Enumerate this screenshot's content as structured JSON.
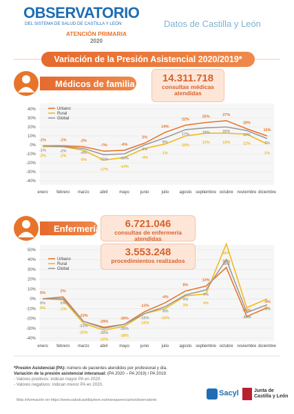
{
  "header": {
    "logo": "OBSERVATORIO",
    "logo_sub": "DEL SISTEMA DE SALUD DE CASTILLA Y LEÓN",
    "section": "ATENCIÓN PRIMARIA",
    "year": "2020",
    "region": "Datos de Castilla y León"
  },
  "banner": "Variación de la Presión Asistencial 2020/2019*",
  "chart_data": [
    {
      "type": "line",
      "title": "Médicos de familia",
      "annotations": [
        "14.311.718",
        "consultas médicas atendidas"
      ],
      "categories": [
        "enero",
        "febrero",
        "marzo",
        "abril",
        "mayo",
        "junio",
        "julio",
        "agosto",
        "septiembre",
        "octubre",
        "noviembre",
        "diciembre"
      ],
      "series": [
        {
          "name": "Urbano",
          "color": "#e8742a",
          "values": [
            -1,
            -1,
            -2,
            -7,
            -6,
            2,
            14,
            22,
            25,
            27,
            18,
            10
          ],
          "value_labels": [
            "-1%",
            "-1%",
            "-2%",
            "-7%",
            "-6%",
            "2%",
            "14%",
            "22%",
            "25%",
            "27%",
            "18%",
            "10%"
          ]
        },
        {
          "name": "Rural",
          "color": "#f2b81c",
          "values": [
            -2,
            -2,
            -6,
            -17,
            -14,
            -4,
            1,
            10,
            13,
            13,
            12,
            1
          ],
          "value_labels": [
            "-2%",
            "-2%",
            "-6%",
            "-17%",
            "-14%",
            "-4%",
            "1%",
            "10%",
            "13%",
            "13%",
            "12%",
            "1%"
          ]
        },
        {
          "name": "Global",
          "color": "#9a9a9a",
          "values": [
            -1,
            -2,
            -4,
            -11,
            -10,
            0,
            8,
            17,
            19,
            20,
            16,
            7
          ],
          "value_labels": [
            "-1%",
            "-2%",
            "-4%",
            "-11%",
            "-10%",
            "0%",
            "8%",
            "17%",
            "19%",
            "20%",
            "16%",
            "7%"
          ]
        }
      ],
      "ylim": [
        -40,
        40
      ],
      "yticks": [
        {
          "value": 40,
          "label": "40%"
        },
        {
          "value": 30,
          "label": "30%"
        },
        {
          "value": 20,
          "label": "20%"
        },
        {
          "value": 10,
          "label": "10%"
        },
        {
          "value": 0,
          "label": "0%"
        },
        {
          "value": -10,
          "label": "-10%"
        },
        {
          "value": -20,
          "label": "-20%"
        },
        {
          "value": -30,
          "label": "-30%"
        },
        {
          "value": -40,
          "label": "-40%"
        }
      ],
      "grid": true
    },
    {
      "type": "line",
      "title": "Enfermería",
      "annotations": [
        "6.721.046",
        "consultas de enfermería atendidas",
        "3.553.248",
        "procedimientos realizados"
      ],
      "categories": [
        "enero",
        "febrero",
        "marzo",
        "abril",
        "mayo",
        "junio",
        "julio",
        "agosto",
        "septiembre",
        "octubre",
        "noviembre",
        "diciembre"
      ],
      "series": [
        {
          "name": "Urbano",
          "color": "#e8742a",
          "values": [
            0,
            2,
            -23,
            -29,
            -26,
            -13,
            -4,
            8,
            13,
            32,
            -18,
            -9
          ],
          "value_labels": [
            "0%",
            "2%",
            "-23%",
            "-29%",
            "-26%",
            "-13%",
            "-4%",
            "8%",
            "13%",
            "32%",
            "-18%",
            "-9%"
          ]
        },
        {
          "name": "Rural",
          "color": "#f2b81c",
          "values": [
            0,
            -1,
            -25,
            -32,
            -28,
            -15,
            -10,
            3,
            5,
            56,
            -9,
            0
          ],
          "value_labels": [
            "0%",
            "-1%",
            "-25%",
            "-32%",
            "-28%",
            "-15%",
            "-10%",
            "3%",
            "5%",
            "56%",
            "-9%",
            "0%"
          ]
        },
        {
          "name": "Global",
          "color": "#9a9a9a",
          "values": [
            0,
            0,
            -23,
            -30,
            -26,
            -15,
            -8,
            4,
            9,
            40,
            -14,
            -6
          ],
          "value_labels": [
            "0%",
            "0%",
            "-23%",
            "-30%",
            "-26%",
            "-15%",
            "-8%",
            "4%",
            "9%",
            "40%",
            "-14%",
            "-6%"
          ]
        }
      ],
      "ylim": [
        -40,
        50
      ],
      "yticks": [
        {
          "value": 50,
          "label": "50%"
        },
        {
          "value": 40,
          "label": "40%"
        },
        {
          "value": 30,
          "label": "30%"
        },
        {
          "value": 20,
          "label": "20%"
        },
        {
          "value": 10,
          "label": "10%"
        },
        {
          "value": 0,
          "label": "0%"
        },
        {
          "value": -10,
          "label": "-10%"
        },
        {
          "value": -20,
          "label": "-20%"
        },
        {
          "value": -30,
          "label": "-30%"
        },
        {
          "value": -40,
          "label": "-40%"
        }
      ],
      "grid": true
    }
  ],
  "footer": {
    "definition_term": "*Presión Asistencial (PA):",
    "definition": "número de pacientes atendidos por profesional y día.",
    "variation_term": "Variación de la presión asistencial interanual:",
    "variation": "(PA 2020 – PA 2019) / PA 2019.",
    "notes": [
      "- Valores positivos: indican mayor PA en 2020.",
      "- Valores negativos: indican menor PA en 2020."
    ],
    "more_info": "Más información en https://www.saludcastillayleon.es/transparencia/es/observatorio"
  },
  "logos": {
    "sacyl": "Sacyl",
    "junta": [
      "Junta de",
      "Castilla y León"
    ]
  }
}
